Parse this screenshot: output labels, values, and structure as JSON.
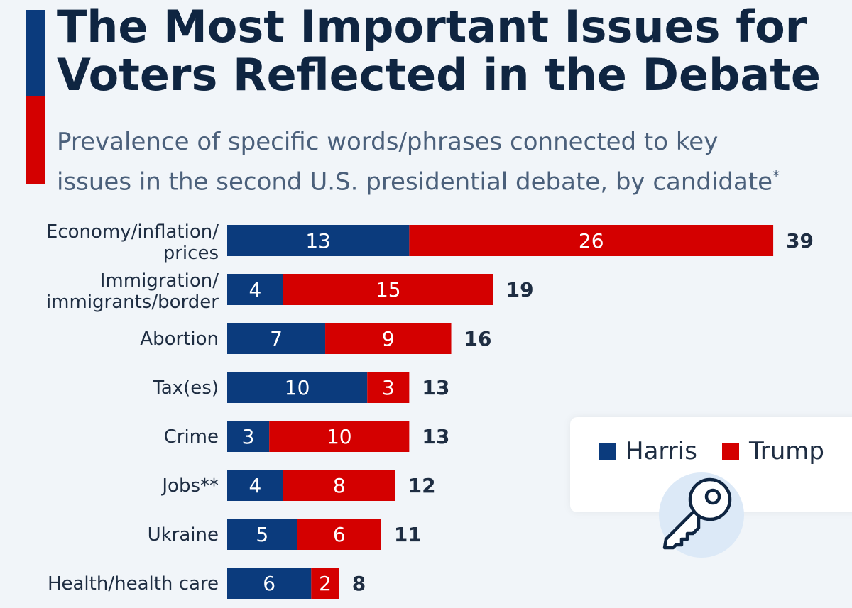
{
  "header": {
    "title": "The Most Important Issues for\nVoters Reflected in the Debate",
    "subtitle": "Prevalence of specific words/phrases connected to key\nissues in the second U.S. presidential debate, by candidate",
    "subtitle_mark": "*"
  },
  "colors": {
    "harris": "#0b3b7d",
    "trump": "#d40000",
    "text": "#0f2541"
  },
  "legend": [
    {
      "label": "Harris",
      "color": "#0b3b7d"
    },
    {
      "label": "Trump",
      "color": "#d40000"
    }
  ],
  "icon": "key-icon",
  "chart_data": {
    "type": "bar",
    "orientation": "horizontal",
    "stacked": true,
    "categories": [
      "Economy/inflation/\nprices",
      "Immigration/\nimmigrants/border",
      "Abortion",
      "Tax(es)",
      "Crime",
      "Jobs**",
      "Ukraine",
      "Health/health care"
    ],
    "series": [
      {
        "name": "Harris",
        "values": [
          13,
          4,
          7,
          10,
          3,
          4,
          5,
          6
        ]
      },
      {
        "name": "Trump",
        "values": [
          26,
          15,
          9,
          3,
          10,
          8,
          6,
          2
        ]
      }
    ],
    "totals": [
      39,
      19,
      16,
      13,
      13,
      12,
      11,
      8
    ],
    "legend_position": "bottom-right",
    "grid": false
  }
}
